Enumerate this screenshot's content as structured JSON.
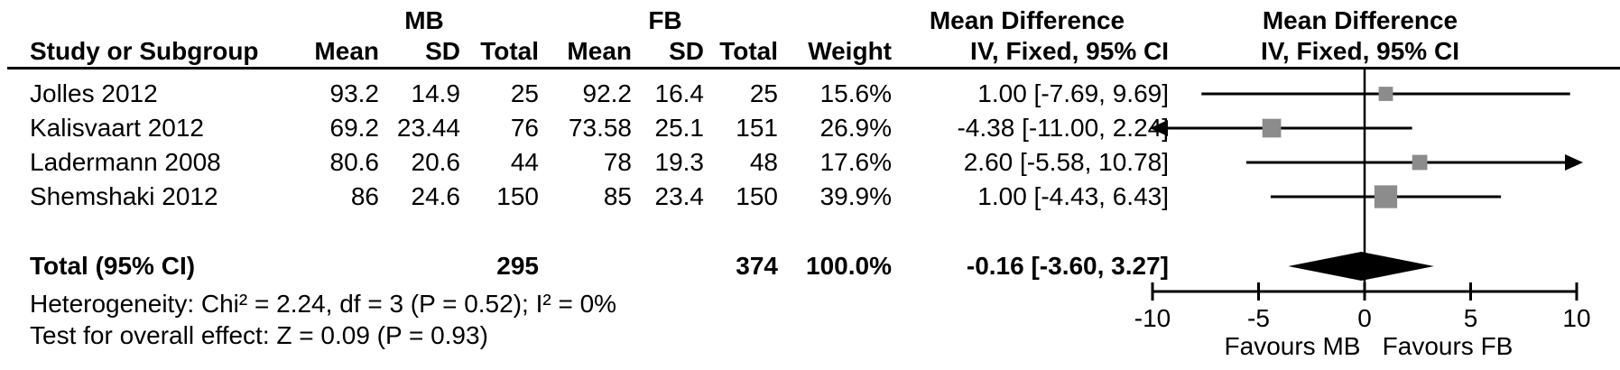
{
  "table": {
    "group1_label": "MB",
    "group2_label": "FB",
    "headers": {
      "study": "Study or Subgroup",
      "mean1": "Mean",
      "sd1": "SD",
      "total1": "Total",
      "mean2": "Mean",
      "sd2": "SD",
      "total2": "Total",
      "weight": "Weight",
      "md_line1": "Mean Difference",
      "md_line2": "IV, Fixed, 95% CI",
      "plot_line1": "Mean Difference",
      "plot_line2": "IV, Fixed, 95% CI"
    },
    "rows": [
      {
        "study": "Jolles 2012",
        "mean1": "93.2",
        "sd1": "14.9",
        "total1": "25",
        "mean2": "92.2",
        "sd2": "16.4",
        "total2": "25",
        "weight": "15.6%",
        "ci": "1.00 [-7.69, 9.69]"
      },
      {
        "study": "Kalisvaart 2012",
        "mean1": "69.2",
        "sd1": "23.44",
        "total1": "76",
        "mean2": "73.58",
        "sd2": "25.1",
        "total2": "151",
        "weight": "26.9%",
        "ci": "-4.38 [-11.00, 2.24]"
      },
      {
        "study": "Ladermann 2008",
        "mean1": "80.6",
        "sd1": "20.6",
        "total1": "44",
        "mean2": "78",
        "sd2": "19.3",
        "total2": "48",
        "weight": "17.6%",
        "ci": "2.60 [-5.58, 10.78]"
      },
      {
        "study": "Shemshaki 2012",
        "mean1": "86",
        "sd1": "24.6",
        "total1": "150",
        "mean2": "85",
        "sd2": "23.4",
        "total2": "150",
        "weight": "39.9%",
        "ci": "1.00 [-4.43, 6.43]"
      }
    ],
    "total_row": {
      "label": "Total (95% CI)",
      "total1": "295",
      "total2": "374",
      "weight": "100.0%",
      "ci": "-0.16 [-3.60, 3.27]"
    },
    "heterogeneity": "Heterogeneity: Chi² = 2.24, df = 3 (P = 0.52); I² = 0%",
    "overall_effect": "Test for overall effect: Z = 0.09 (P = 0.93)"
  },
  "chart_data": {
    "type": "forest",
    "title": "Mean Difference IV, Fixed, 95% CI",
    "axis": {
      "min": -10,
      "max": 10,
      "ticks": [
        -10,
        -5,
        0,
        5,
        10
      ],
      "label_left": "Favours MB",
      "label_right": "Favours FB"
    },
    "studies": [
      {
        "name": "Jolles 2012",
        "md": 1.0,
        "ci_low": -7.69,
        "ci_high": 9.69,
        "weight_pct": 15.6
      },
      {
        "name": "Kalisvaart 2012",
        "md": -4.38,
        "ci_low": -11.0,
        "ci_high": 2.24,
        "weight_pct": 26.9
      },
      {
        "name": "Ladermann 2008",
        "md": 2.6,
        "ci_low": -5.58,
        "ci_high": 10.78,
        "weight_pct": 17.6
      },
      {
        "name": "Shemshaki 2012",
        "md": 1.0,
        "ci_low": -4.43,
        "ci_high": 6.43,
        "weight_pct": 39.9
      }
    ],
    "pooled": {
      "md": -0.16,
      "ci_low": -3.6,
      "ci_high": 3.27
    },
    "colors": {
      "marker": "#8c8c8c",
      "line": "#000000",
      "diamond": "#000000"
    }
  }
}
